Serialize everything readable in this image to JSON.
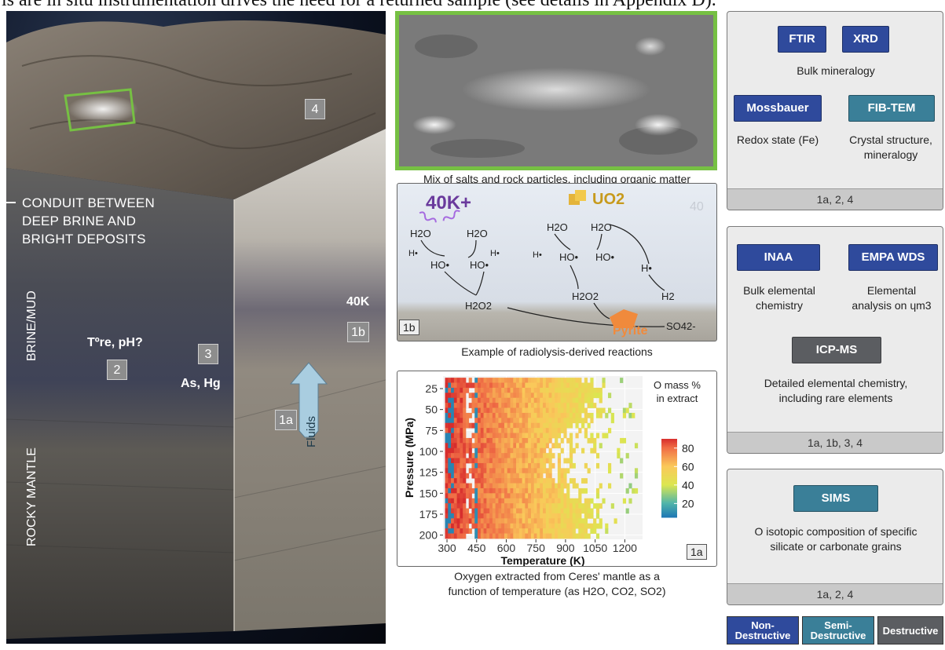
{
  "header_fragment": "is are in situ instrumentation drives the need for a returned sample (see details in Appendix D).",
  "illustration": {
    "conduit_label_lines": [
      "CONDUIT BETWEEN",
      "DEEP BRINE AND",
      "BRIGHT DEPOSITS"
    ],
    "brine_label": "BRINE/MUD",
    "mantle_label": "ROCKY MANTLE",
    "temp_label": "Tºre, pH?",
    "metals_label": "As, Hg",
    "k40_label": "40K",
    "fluids_label": "Fluids",
    "markers": {
      "m4": "4",
      "m2": "2",
      "m3": "3",
      "m1a": "1a",
      "m1b": "1b"
    }
  },
  "salts_panel": {
    "caption": "Mix of salts and rock particles, including organic matter"
  },
  "radiolysis_panel": {
    "tag": "1b",
    "caption": "Example of radiolysis-derived reactions",
    "labels": {
      "k": "40K+",
      "uo2": "UO2",
      "gamma": "γ",
      "h2o": "H2O",
      "ho": "HO•",
      "h": "H•",
      "h2o2": "H2O2",
      "h2": "H2",
      "pyrite": "Pyrite",
      "so4": "SO42-",
      "faded": "40"
    }
  },
  "chart_panel": {
    "tag": "1a",
    "caption_line1": "Oxygen extracted from Ceres' mantle as a",
    "caption_line2": "function of temperature (as H2O, CO2, SO2)"
  },
  "chart_data": {
    "type": "heatmap",
    "xlabel": "Temperature (K)",
    "ylabel": "Pressure (MPa)",
    "x_ticks": [
      300,
      450,
      600,
      750,
      900,
      1050,
      1200
    ],
    "y_ticks": [
      25,
      50,
      75,
      100,
      125,
      150,
      175,
      200
    ],
    "xlim": [
      280,
      1290
    ],
    "ylim": [
      10,
      205
    ],
    "colorbar": {
      "title_lines": [
        "O mass %",
        "in extract"
      ],
      "ticks": [
        80,
        60,
        40,
        20
      ],
      "range": [
        5,
        90
      ]
    },
    "description_of_values": "O mass % is high (~80) at low temperatures and decreases toward ~40-60 at higher temperatures; white gaps where no extract"
  },
  "groups": [
    {
      "techniques": [
        "FTIR",
        "XRD",
        "Mossbauer",
        "FIB-TEM"
      ],
      "descriptions": [
        "Bulk mineralogy",
        "Redox state (Fe)",
        "Crystal structure,",
        "mineralogy"
      ],
      "footer": "1a, 2, 4"
    },
    {
      "techniques": [
        "INAA",
        "EMPA WDS",
        "ICP-MS"
      ],
      "descriptions": [
        "Bulk elemental",
        "chemistry",
        "Elemental",
        "analysis on ɥm3",
        "Detailed elemental chemistry,",
        "including rare elements"
      ],
      "footer": "1a, 1b, 3, 4"
    },
    {
      "techniques": [
        "SIMS"
      ],
      "descriptions": [
        "O isotopic composition of specific",
        "silicate or carbonate grains"
      ],
      "footer": "1a, 2, 4"
    }
  ],
  "legend": {
    "non_destructive": [
      "Non-",
      "Destructive"
    ],
    "semi_destructive": [
      "Semi-",
      "Destructive"
    ],
    "destructive": "Destructive"
  },
  "colors": {
    "non_destructive": "#2f4a9c",
    "semi_destructive": "#3a7f98",
    "destructive": "#5b5d61",
    "highlight_frame": "#76c043"
  }
}
